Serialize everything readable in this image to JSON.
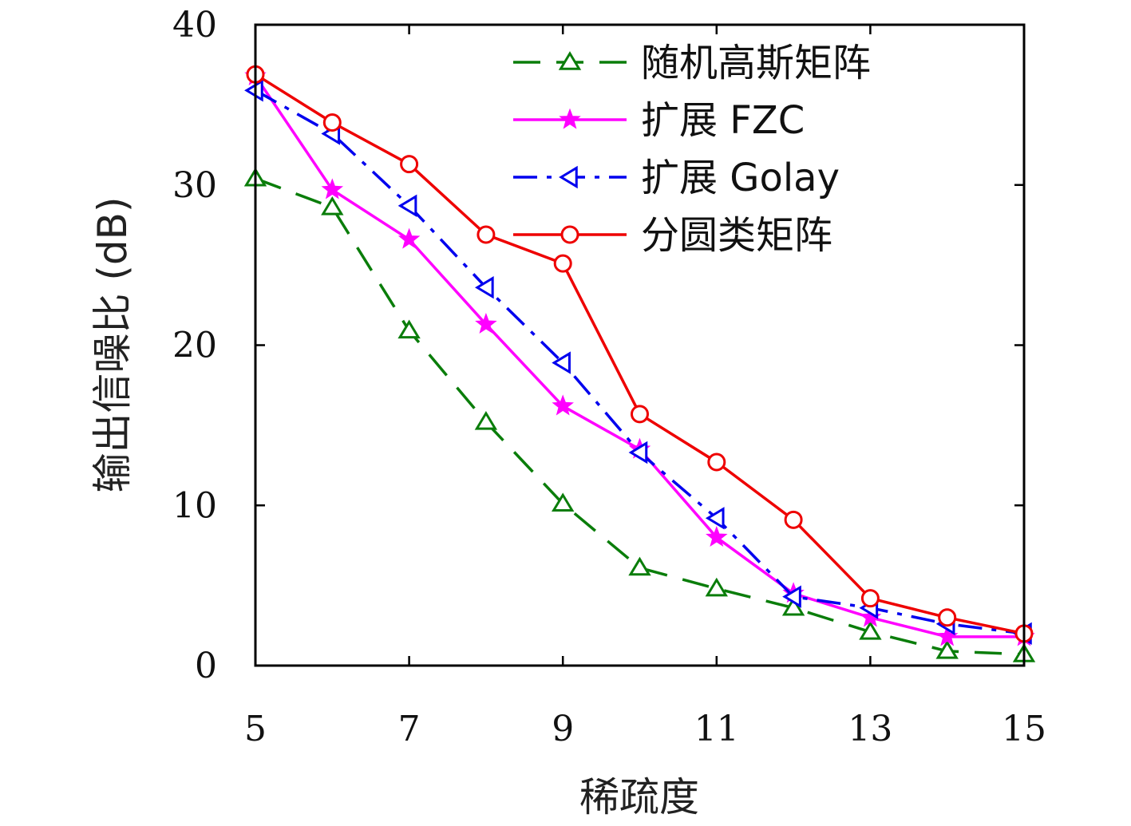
{
  "chart_data": {
    "type": "line",
    "xlabel": "稀疏度",
    "ylabel": "输出信噪比 (dB)",
    "xlim": [
      5,
      15
    ],
    "ylim": [
      0,
      40
    ],
    "x_ticks": [
      5,
      7,
      9,
      11,
      13,
      15
    ],
    "y_ticks": [
      0,
      10,
      20,
      30,
      40
    ],
    "x": [
      5,
      6,
      7,
      8,
      9,
      10,
      11,
      12,
      13,
      14,
      15
    ],
    "grid": false,
    "legend_position": "top-right",
    "series": [
      {
        "name": "随机高斯矩阵",
        "color": "#0a7d0a",
        "line_style": "dashed",
        "marker": "triangle-up-open",
        "values": [
          30.4,
          28.6,
          20.9,
          15.2,
          10.1,
          6.1,
          4.8,
          3.6,
          2.1,
          0.9,
          0.7
        ]
      },
      {
        "name": "扩展 FZC",
        "color": "#ff00ff",
        "line_style": "solid",
        "marker": "star-filled",
        "values": [
          36.8,
          29.7,
          26.6,
          21.3,
          16.2,
          13.5,
          8.0,
          4.5,
          3.0,
          1.8,
          1.8
        ]
      },
      {
        "name": "扩展 Golay",
        "color": "#0000ee",
        "line_style": "dash-dot",
        "marker": "triangle-left-open",
        "values": [
          35.9,
          33.2,
          28.7,
          23.6,
          18.9,
          13.3,
          9.2,
          4.3,
          3.6,
          2.6,
          2.0
        ]
      },
      {
        "name": "分圆类矩阵",
        "color": "#ee0000",
        "line_style": "solid",
        "marker": "circle-open",
        "values": [
          36.9,
          33.9,
          31.3,
          26.9,
          25.1,
          15.7,
          12.7,
          9.1,
          4.2,
          3.0,
          2.0
        ]
      }
    ]
  }
}
